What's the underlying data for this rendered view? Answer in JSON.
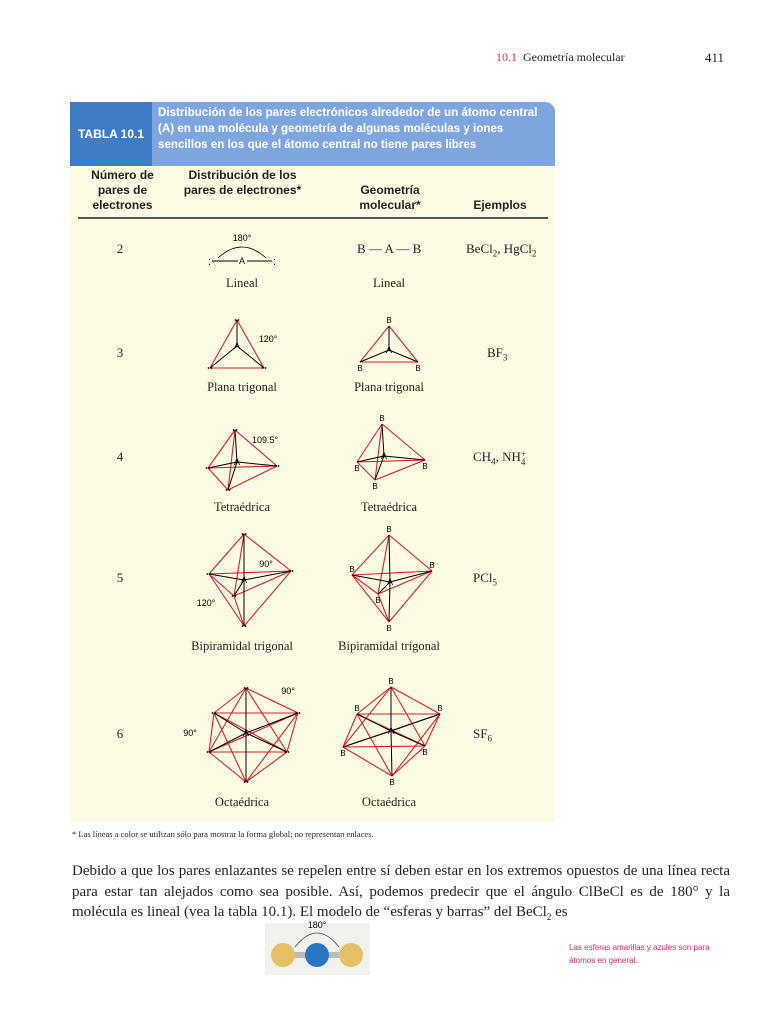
{
  "header": {
    "section_number": "10.1",
    "section_title": "Geometría molecular",
    "page_number": "411"
  },
  "table": {
    "label": "TABLA 10.1",
    "title": "Distribución de los pares electrónicos alrededor de un átomo central (A) en una molécula y geometría de algunas moléculas y iones sencillos en los que el átomo central no tiene pares libres",
    "columns": [
      "Número de pares de electrones",
      "Distribución de los pares de electrones*",
      "Geometría molecular*",
      "Ejemplos"
    ],
    "rows": [
      {
        "pairs": "2",
        "distribution": "Lineal",
        "geometry": "Lineal",
        "geometry_formula": "B — A — B",
        "angle": "180°",
        "examples": [
          {
            "t": "BeCl",
            "s": "2"
          },
          {
            "t": ", HgCl",
            "s": "2"
          }
        ]
      },
      {
        "pairs": "3",
        "distribution": "Plana trigonal",
        "geometry": "Plana trigonal",
        "angle": "120°",
        "examples": [
          {
            "t": "BF",
            "s": "3"
          }
        ]
      },
      {
        "pairs": "4",
        "distribution": "Tetraédrica",
        "geometry": "Tetraédrica",
        "angle": "109.5°",
        "examples": [
          {
            "t": "CH",
            "s": "4"
          },
          {
            "t": ", NH",
            "s": "4",
            "sup": "+"
          }
        ]
      },
      {
        "pairs": "5",
        "distribution": "Bipiramidal trigonal",
        "geometry": "Bipiramidal trigonal",
        "angle": "90°",
        "angle2": "120°",
        "examples": [
          {
            "t": "PCl",
            "s": "5"
          }
        ]
      },
      {
        "pairs": "6",
        "distribution": "Octaédrica",
        "geometry": "Octaédrica",
        "angle": "90°",
        "angle2": "90°",
        "examples": [
          {
            "t": "SF",
            "s": "6"
          }
        ]
      }
    ],
    "atom_central": "A",
    "atom_outer": "B",
    "footnote": "* Las líneas a color se utilizan sólo para mostrar la forma global; no representan enlaces."
  },
  "body": {
    "p1": "Debido a que los pares enlazantes se repelen entre sí deben estar en los extremos opuestos de una línea recta para estar tan alejados como sea posible. Así, podemos predecir que el ángulo ClBeCl es de 180° y la molécula es lineal (vea la tabla 10.1). El modelo de “esferas y barras” del BeCl",
    "p1_sub": "2",
    "p1_end": " es"
  },
  "model": {
    "angle": "180°"
  },
  "margin_note": "Las esferas amarillas y azules son para átomos en general.",
  "colors": {
    "accent": "#e0245e",
    "table_header": "#7ea6de",
    "table_label": "#3e7cc6",
    "table_bg": "#fdfbe3",
    "shape_lines": "#d0202e"
  }
}
